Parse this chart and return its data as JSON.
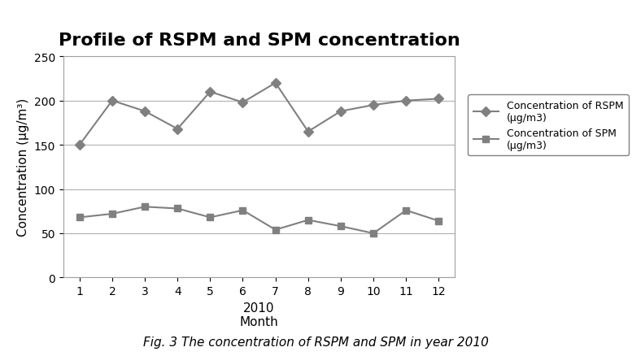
{
  "title": "Profile of RSPM and SPM concentration",
  "xlabel": "Month",
  "year_label": "2010",
  "ylabel": "Concentration (μg/m³)",
  "caption": "Fig. 3 The concentration of RSPM and SPM in year 2010",
  "months": [
    1,
    2,
    3,
    4,
    5,
    6,
    7,
    8,
    9,
    10,
    11,
    12
  ],
  "rspm": [
    150,
    200,
    188,
    168,
    210,
    198,
    220,
    165,
    188,
    195,
    200,
    202
  ],
  "spm": [
    68,
    72,
    80,
    78,
    68,
    76,
    54,
    65,
    58,
    50,
    76,
    64
  ],
  "ylim": [
    0,
    250
  ],
  "yticks": [
    0,
    50,
    100,
    150,
    200,
    250
  ],
  "line_color": "#808080",
  "marker_rspm": "D",
  "marker_spm": "s",
  "legend_rspm": "Concentration of RSPM\n(μg/m3)",
  "legend_spm": "Concentration of SPM\n(μg/m3)",
  "title_fontsize": 16,
  "axis_fontsize": 11,
  "tick_fontsize": 10,
  "legend_fontsize": 9,
  "caption_fontsize": 11,
  "bg_color": "#ffffff",
  "grid_color": "#b0b0b0"
}
